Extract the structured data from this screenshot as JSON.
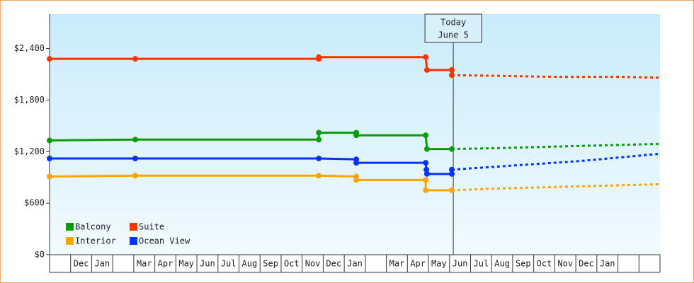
{
  "chart_data": {
    "type": "line",
    "ylim": [
      0,
      2800
    ],
    "yticks": [
      {
        "value": 0,
        "label": "$0"
      },
      {
        "value": 600,
        "label": "$600"
      },
      {
        "value": 1200,
        "label": "$1,200"
      },
      {
        "value": 1800,
        "label": "$1,800"
      },
      {
        "value": 2400,
        "label": "$2,400"
      }
    ],
    "xlim": [
      0,
      29
    ],
    "categories": [
      null,
      "Dec",
      "Jan",
      null,
      "Mar",
      "Apr",
      "May",
      "Jun",
      "Jul",
      "Aug",
      "Sep",
      "Oct",
      "Nov",
      "Dec",
      "Jan",
      null,
      "Mar",
      "Apr",
      "May",
      "Jun",
      "Jul",
      "Aug",
      "Sep",
      "Oct",
      "Nov",
      "Dec",
      "Jan",
      null,
      null
    ],
    "today": {
      "x": 19.18,
      "label": [
        "Today",
        "June 5"
      ]
    },
    "series": [
      {
        "name": "Balcony",
        "color": "#0a9b0a",
        "x": [
          0,
          4.07,
          12.79,
          12.79,
          14.57,
          14.57,
          17.87,
          17.93,
          19.11
        ],
        "values": [
          1330,
          1340,
          1340,
          1420,
          1420,
          1390,
          1390,
          1230,
          1230
        ],
        "forecast_x": [
          19.11,
          21.2,
          29
        ],
        "forecast_values": [
          1230,
          1240,
          1290
        ]
      },
      {
        "name": "Suite",
        "color": "#ff3300",
        "x": [
          0,
          4.07,
          12.79,
          12.79,
          17.87,
          17.93,
          19.11,
          19.11
        ],
        "values": [
          2280,
          2280,
          2280,
          2300,
          2300,
          2150,
          2150,
          2090
        ],
        "forecast_x": [
          19.11,
          24.2,
          27.2,
          29
        ],
        "forecast_values": [
          2090,
          2070,
          2070,
          2060
        ]
      },
      {
        "name": "Interior",
        "color": "#ffa500",
        "x": [
          0,
          4.07,
          12.79,
          14.57,
          14.57,
          17.87,
          17.87,
          19.11
        ],
        "values": [
          910,
          920,
          920,
          910,
          870,
          870,
          750,
          750
        ],
        "forecast_x": [
          19.11,
          21.2,
          29
        ],
        "forecast_values": [
          750,
          770,
          820
        ]
      },
      {
        "name": "Ocean View",
        "color": "#0033ff",
        "x": [
          0,
          4.07,
          12.79,
          14.57,
          14.57,
          17.87,
          17.9,
          17.93,
          19.11,
          19.11
        ],
        "values": [
          1120,
          1120,
          1120,
          1110,
          1070,
          1070,
          990,
          940,
          940,
          990
        ],
        "forecast_x": [
          19.11,
          25.2,
          29
        ],
        "forecast_values": [
          990,
          1090,
          1175
        ]
      }
    ]
  }
}
